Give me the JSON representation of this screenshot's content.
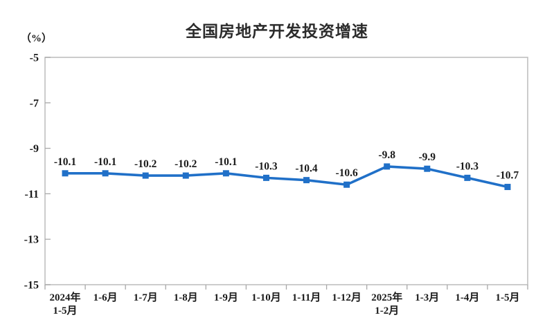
{
  "chart_data": {
    "type": "line",
    "title": "全国房地产开发投资增速",
    "unit_label": "（%）",
    "categories": [
      "2024年\n1-5月",
      "1-6月",
      "1-7月",
      "1-8月",
      "1-9月",
      "1-10月",
      "1-11月",
      "1-12月",
      "2025年\n1-2月",
      "1-3月",
      "1-4月",
      "1-5月"
    ],
    "values": [
      -10.1,
      -10.1,
      -10.2,
      -10.2,
      -10.1,
      -10.3,
      -10.4,
      -10.6,
      -9.8,
      -9.9,
      -10.3,
      -10.7
    ],
    "data_labels": [
      "-10.1",
      "-10.1",
      "-10.2",
      "-10.2",
      "-10.1",
      "-10.3",
      "-10.4",
      "-10.6",
      "-9.8",
      "-9.9",
      "-10.3",
      "-10.7"
    ],
    "xlabel": "",
    "ylabel": "(%)",
    "ylim": [
      -15,
      -5
    ],
    "yticks": [
      -5,
      -7,
      -9,
      -11,
      -13,
      -15
    ],
    "grid": false,
    "legend": "none",
    "marker": "square",
    "line_color": "#2070C8",
    "axis_color": "#c0c0c0",
    "tick_color": "#a8a8a8",
    "label_color": "#1a1a1a"
  }
}
